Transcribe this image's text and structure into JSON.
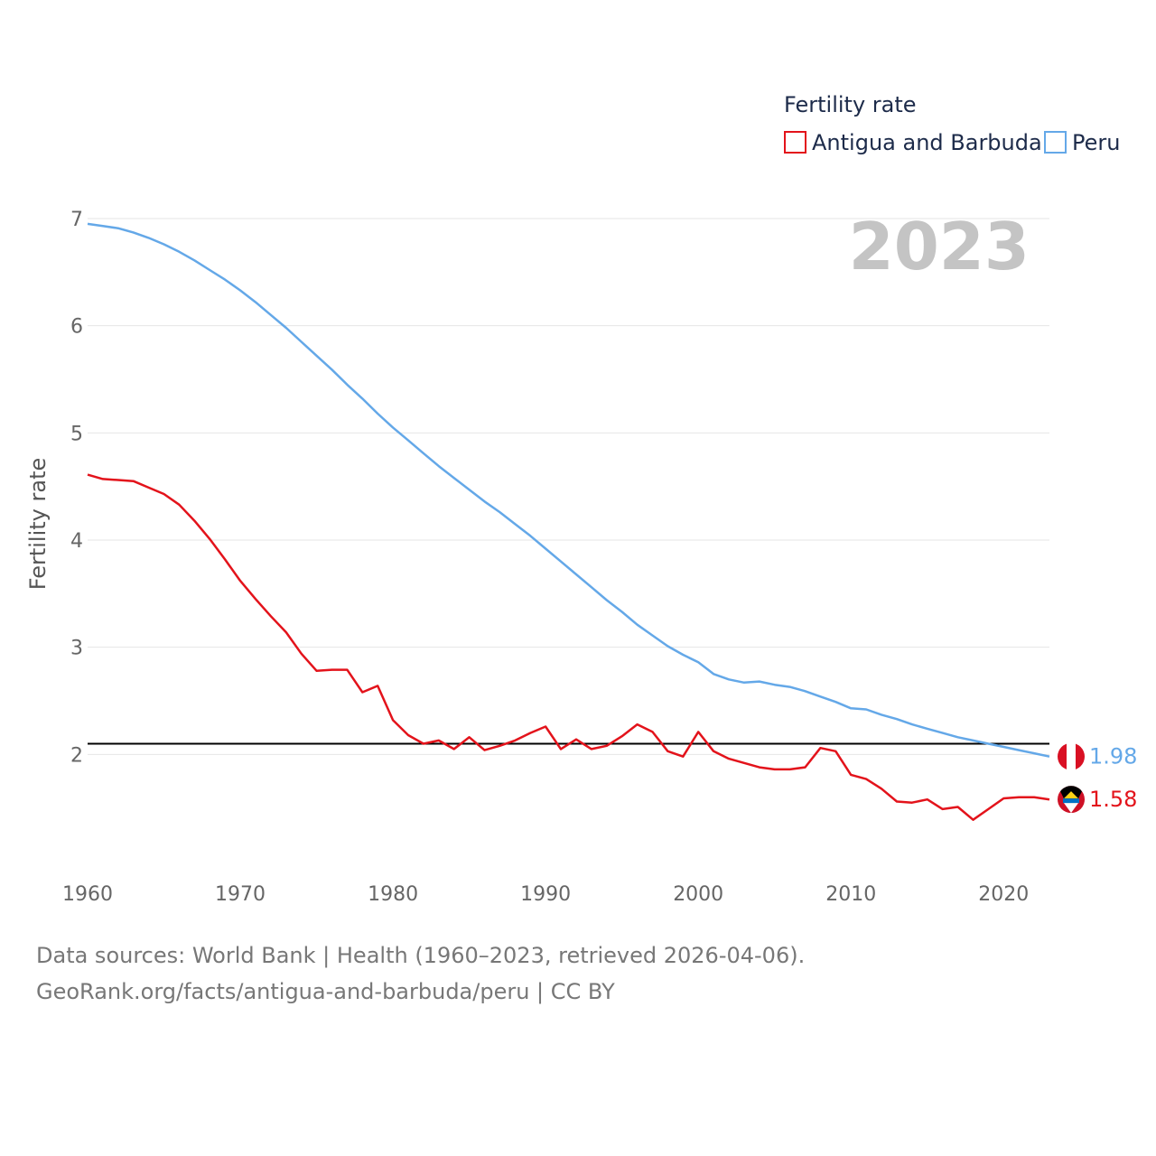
{
  "chart_data": {
    "type": "line",
    "title": "",
    "legend_title": "Fertility rate",
    "year_label": "2023",
    "xlabel": "",
    "ylabel": "Fertility rate",
    "xlim": [
      1960,
      2023
    ],
    "ylim": [
      1.0,
      7.0
    ],
    "x_ticks": [
      1960,
      1970,
      1980,
      1990,
      2000,
      2010,
      2020
    ],
    "y_ticks": [
      2,
      3,
      4,
      5,
      6,
      7
    ],
    "reference_line": 2.1,
    "x": [
      1960,
      1961,
      1962,
      1963,
      1964,
      1965,
      1966,
      1967,
      1968,
      1969,
      1970,
      1971,
      1972,
      1973,
      1974,
      1975,
      1976,
      1977,
      1978,
      1979,
      1980,
      1981,
      1982,
      1983,
      1984,
      1985,
      1986,
      1987,
      1988,
      1989,
      1990,
      1991,
      1992,
      1993,
      1994,
      1995,
      1996,
      1997,
      1998,
      1999,
      2000,
      2001,
      2002,
      2003,
      2004,
      2005,
      2006,
      2007,
      2008,
      2009,
      2010,
      2011,
      2012,
      2013,
      2014,
      2015,
      2016,
      2017,
      2018,
      2019,
      2020,
      2021,
      2022,
      2023
    ],
    "series": [
      {
        "name": "Antigua and Barbuda",
        "color": "#e3131b",
        "end_label": "1.58",
        "values": [
          4.61,
          4.57,
          4.56,
          4.55,
          4.49,
          4.43,
          4.33,
          4.18,
          4.01,
          3.82,
          3.62,
          3.45,
          3.29,
          3.14,
          2.94,
          2.78,
          2.79,
          2.79,
          2.58,
          2.64,
          2.32,
          2.18,
          2.1,
          2.13,
          2.05,
          2.16,
          2.04,
          2.08,
          2.13,
          2.2,
          2.26,
          2.05,
          2.14,
          2.05,
          2.08,
          2.17,
          2.28,
          2.21,
          2.03,
          1.98,
          2.21,
          2.03,
          1.96,
          1.92,
          1.88,
          1.86,
          1.86,
          1.88,
          2.06,
          2.03,
          1.81,
          1.77,
          1.68,
          1.56,
          1.55,
          1.58,
          1.49,
          1.51,
          1.39,
          1.49,
          1.59,
          1.6,
          1.6,
          1.58
        ]
      },
      {
        "name": "Peru",
        "color": "#64a8e8",
        "end_label": "1.98",
        "values": [
          6.95,
          6.93,
          6.91,
          6.87,
          6.82,
          6.76,
          6.69,
          6.61,
          6.52,
          6.43,
          6.33,
          6.22,
          6.1,
          5.98,
          5.85,
          5.72,
          5.59,
          5.45,
          5.32,
          5.18,
          5.05,
          4.93,
          4.81,
          4.69,
          4.58,
          4.47,
          4.36,
          4.26,
          4.15,
          4.04,
          3.92,
          3.8,
          3.68,
          3.56,
          3.44,
          3.33,
          3.21,
          3.11,
          3.01,
          2.93,
          2.86,
          2.75,
          2.7,
          2.67,
          2.68,
          2.65,
          2.63,
          2.59,
          2.54,
          2.49,
          2.43,
          2.42,
          2.37,
          2.33,
          2.28,
          2.24,
          2.2,
          2.16,
          2.13,
          2.1,
          2.07,
          2.04,
          2.01,
          1.98
        ]
      }
    ]
  },
  "footer": {
    "source": "Data sources: World Bank | Health (1960–2023, retrieved 2026-04-06).",
    "url": "GeoRank.org/facts/antigua-and-barbuda/peru | CC BY"
  },
  "colors": {
    "grid": "#e6e6e6",
    "reference": "#000000",
    "year": "#c4c4c4"
  }
}
